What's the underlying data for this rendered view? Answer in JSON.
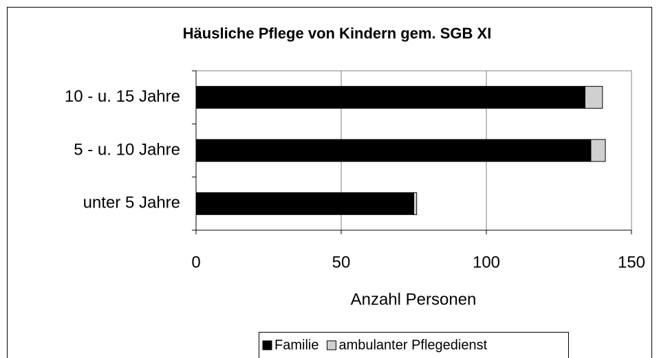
{
  "chart_data": {
    "type": "stacked_barh",
    "title": "Häusliche Pflege von Kindern gem.  SGB XI",
    "categories": [
      "10 - u. 15 Jahre",
      "5 - u. 10 Jahre",
      "unter 5 Jahre"
    ],
    "series": [
      {
        "name": "Familie",
        "color": "#000000",
        "values": [
          134,
          136,
          75
        ]
      },
      {
        "name": "ambulanter Pflegedienst",
        "color": "#d0d0d0",
        "values": [
          6,
          5,
          1
        ]
      }
    ],
    "xlabel": "Anzahl Personen",
    "xlim": [
      0,
      150
    ],
    "xticks": [
      0,
      50,
      100,
      150
    ],
    "grid": true,
    "legend": "bottom"
  }
}
